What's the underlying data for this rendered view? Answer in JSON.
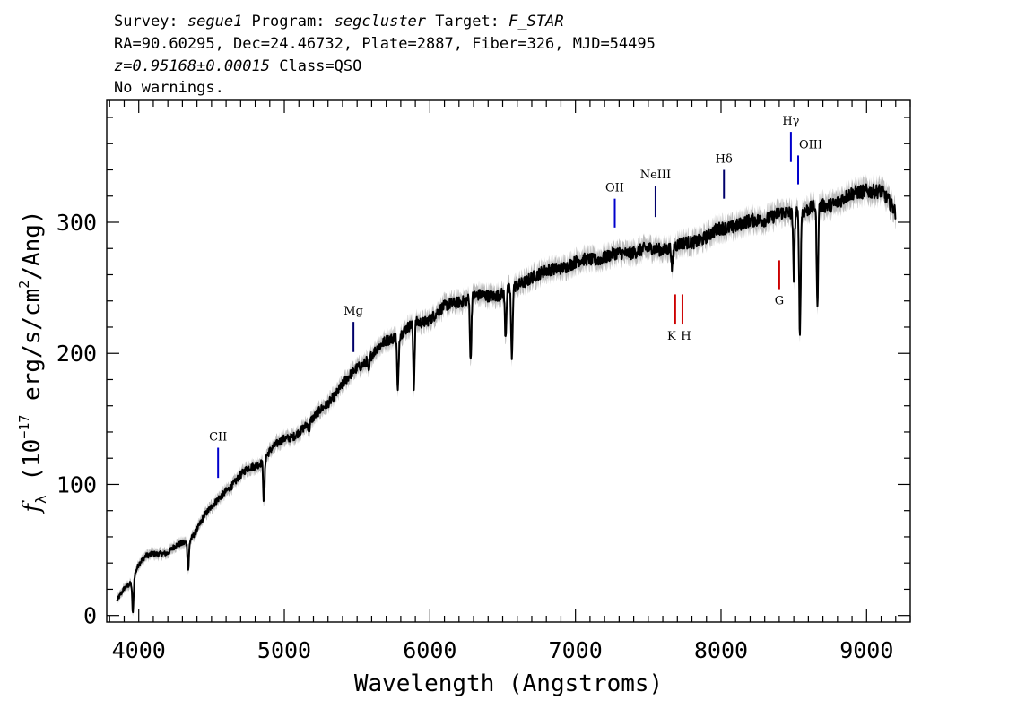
{
  "header": {
    "line1": {
      "survey_label": "Survey: ",
      "survey": "segue1",
      "program_label": " Program: ",
      "program": "segcluster",
      "target_label": " Target: ",
      "target": "F_STAR"
    },
    "line2": "RA=90.60295, Dec=24.46732, Plate=2887, Fiber=326, MJD=54495",
    "line3": {
      "z": "z=0.95168±0.00015",
      "class": " Class=QSO"
    },
    "line4": "No warnings."
  },
  "chart_data": {
    "type": "line",
    "xlabel": "Wavelength (Angstroms)",
    "ylabel": "f_λ (10^-17 erg/s/cm^2/Ang)",
    "xlim": [
      3780,
      9300
    ],
    "ylim": [
      -5,
      393
    ],
    "xticks": [
      4000,
      5000,
      6000,
      7000,
      8000,
      9000
    ],
    "yticks": [
      0,
      100,
      200,
      300
    ],
    "grid": false,
    "series": [
      {
        "color": "#000000",
        "error_band_color": "#bbbbbb",
        "x": [
          3850,
          3900,
          3950,
          4000,
          4050,
          4100,
          4150,
          4200,
          4250,
          4300,
          4350,
          4400,
          4450,
          4500,
          4550,
          4600,
          4650,
          4700,
          4750,
          4800,
          4850,
          4900,
          4950,
          5000,
          5050,
          5100,
          5150,
          5200,
          5250,
          5300,
          5350,
          5400,
          5450,
          5500,
          5550,
          5600,
          5650,
          5700,
          5750,
          5800,
          5850,
          5900,
          5950,
          6000,
          6100,
          6200,
          6300,
          6400,
          6500,
          6600,
          6700,
          6800,
          6900,
          7000,
          7100,
          7200,
          7300,
          7400,
          7500,
          7600,
          7700,
          7800,
          7900,
          8000,
          8100,
          8200,
          8300,
          8400,
          8500,
          8600,
          8700,
          8800,
          8900,
          9000,
          9100,
          9200
        ],
        "y": [
          12,
          22,
          25,
          38,
          45,
          48,
          48,
          47,
          52,
          55,
          58,
          66,
          75,
          82,
          90,
          96,
          100,
          106,
          112,
          115,
          118,
          125,
          130,
          135,
          137,
          140,
          144,
          150,
          158,
          163,
          168,
          175,
          183,
          190,
          193,
          198,
          204,
          210,
          213,
          215,
          219,
          223,
          224,
          227,
          235,
          240,
          243,
          244,
          246,
          251,
          259,
          262,
          266,
          269,
          272,
          273,
          276,
          278,
          279,
          280,
          282,
          285,
          289,
          295,
          298,
          300,
          303,
          306,
          307,
          310,
          312,
          316,
          321,
          325,
          323,
          308
        ],
        "absorption": [
          {
            "x": 3960,
            "y": 2
          },
          {
            "x": 4340,
            "y": 36
          },
          {
            "x": 4860,
            "y": 86
          },
          {
            "x": 5170,
            "y": 140
          },
          {
            "x": 5580,
            "y": 184
          },
          {
            "x": 5780,
            "y": 171
          },
          {
            "x": 5890,
            "y": 174
          },
          {
            "x": 6280,
            "y": 193
          },
          {
            "x": 6520,
            "y": 213
          },
          {
            "x": 6563,
            "y": 194
          },
          {
            "x": 7665,
            "y": 263
          },
          {
            "x": 8500,
            "y": 260
          },
          {
            "x": 8542,
            "y": 215
          },
          {
            "x": 8662,
            "y": 233
          }
        ]
      }
    ],
    "line_markers": [
      {
        "label": "CII",
        "x": 4545,
        "y1": 105,
        "y2": 128,
        "color": "#0000cc",
        "label_pos": "above"
      },
      {
        "label": "Mg",
        "x": 5475,
        "y1": 201,
        "y2": 224,
        "color": "#00006b",
        "label_pos": "above"
      },
      {
        "label": "OII",
        "x": 7270,
        "y1": 296,
        "y2": 318,
        "color": "#0000cc",
        "label_pos": "above"
      },
      {
        "label": "NeIII",
        "x": 7550,
        "y1": 304,
        "y2": 328,
        "color": "#00006b",
        "label_pos": "above"
      },
      {
        "label": "Hδ",
        "x": 8020,
        "y1": 318,
        "y2": 340,
        "color": "#00006b",
        "label_pos": "above"
      },
      {
        "label": "Hγ",
        "x": 8480,
        "y1": 346,
        "y2": 369,
        "color": "#0000cc",
        "label_pos": "above"
      },
      {
        "label": "OIII",
        "x": 8530,
        "y1": 329,
        "y2": 351,
        "color": "#0000cc",
        "label_pos": "above-right"
      },
      {
        "label": "K",
        "x": 7685,
        "y1": 222,
        "y2": 245,
        "color": "#cc0000",
        "label_pos": "below-left"
      },
      {
        "label": "H",
        "x": 7735,
        "y1": 222,
        "y2": 245,
        "color": "#cc0000",
        "label_pos": "below-right"
      },
      {
        "label": "G",
        "x": 8400,
        "y1": 249,
        "y2": 271,
        "color": "#cc0000",
        "label_pos": "below"
      }
    ]
  }
}
